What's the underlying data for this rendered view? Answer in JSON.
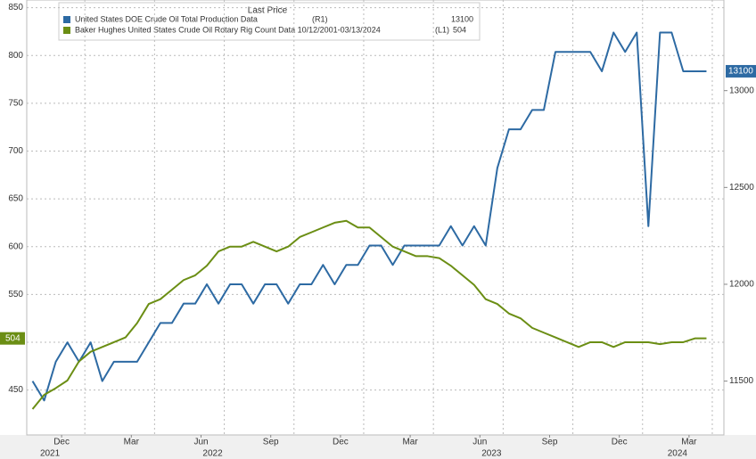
{
  "chart_data": {
    "type": "line",
    "legend_title": "Last Price",
    "x": [
      "2021-11",
      "2021-11",
      "2021-12",
      "2021-12",
      "2022-01",
      "2022-01",
      "2022-02",
      "2022-02",
      "2022-03",
      "2022-03",
      "2022-04",
      "2022-04",
      "2022-05",
      "2022-05",
      "2022-06",
      "2022-06",
      "2022-07",
      "2022-07",
      "2022-08",
      "2022-08",
      "2022-09",
      "2022-09",
      "2022-10",
      "2022-10",
      "2022-11",
      "2022-11",
      "2022-12",
      "2022-12",
      "2023-01",
      "2023-01",
      "2023-02",
      "2023-02",
      "2023-03",
      "2023-03",
      "2023-04",
      "2023-04",
      "2023-05",
      "2023-05",
      "2023-06",
      "2023-06",
      "2023-07",
      "2023-07",
      "2023-08",
      "2023-08",
      "2023-09",
      "2023-09",
      "2023-10",
      "2023-10",
      "2023-11",
      "2023-11",
      "2023-12",
      "2023-12",
      "2024-01",
      "2024-01",
      "2024-02",
      "2024-02",
      "2024-03",
      "2024-03",
      "2024-04"
    ],
    "series": [
      {
        "name": "United States DOE Crude Oil Total Production Data",
        "legend_tag": "(R1)",
        "last_price": 13100,
        "color": "#2d6aa3",
        "axis": "y2",
        "values": [
          11500,
          11400,
          11600,
          11700,
          11600,
          11700,
          11500,
          11600,
          11600,
          11600,
          11700,
          11800,
          11800,
          11900,
          11900,
          12000,
          11900,
          12000,
          12000,
          11900,
          12000,
          12000,
          11900,
          12000,
          12000,
          12100,
          12000,
          12100,
          12100,
          12200,
          12200,
          12100,
          12200,
          12200,
          12200,
          12200,
          12300,
          12200,
          12300,
          12200,
          12600,
          12800,
          12800,
          12900,
          12900,
          13200,
          13200,
          13200,
          13200,
          13100,
          13300,
          13200,
          13300,
          12300,
          13300,
          13300,
          13100,
          13100,
          13100
        ]
      },
      {
        "name": "Baker Hughes United States Crude Oil Rotary Rig Count Data 10/12/2001-03/13/2024",
        "legend_tag": "(L1)",
        "last_price": 504,
        "color": "#6b8e14",
        "values": [
          430,
          445,
          452,
          460,
          480,
          490,
          495,
          500,
          505,
          520,
          540,
          545,
          555,
          565,
          570,
          580,
          595,
          600,
          600,
          605,
          600,
          595,
          600,
          610,
          615,
          620,
          625,
          627,
          620,
          620,
          610,
          600,
          595,
          590,
          590,
          588,
          580,
          570,
          560,
          545,
          540,
          530,
          525,
          515,
          510,
          505,
          500,
          495,
          500,
          500,
          495,
          500,
          500,
          500,
          498,
          500,
          500,
          504,
          504
        ]
      }
    ],
    "ylim": [
      403,
      858
    ],
    "yticks": [
      450,
      500,
      550,
      600,
      650,
      700,
      750,
      800,
      850
    ],
    "y2lim": [
      11222,
      13468
    ],
    "y2ticks": [
      11500,
      12000,
      12500,
      13000
    ],
    "xlim": [
      "2021-11",
      "2024-04"
    ],
    "xticks": [
      {
        "value": "2021-12",
        "label": "Dec"
      },
      {
        "value": "2022-03",
        "label": "Mar"
      },
      {
        "value": "2022-06",
        "label": "Jun"
      },
      {
        "value": "2022-09",
        "label": "Sep"
      },
      {
        "value": "2022-12",
        "label": "Dec"
      },
      {
        "value": "2023-03",
        "label": "Mar"
      },
      {
        "value": "2023-06",
        "label": "Jun"
      },
      {
        "value": "2023-09",
        "label": "Sep"
      },
      {
        "value": "2023-12",
        "label": "Dec"
      },
      {
        "value": "2024-03",
        "label": "Mar"
      }
    ],
    "year_ticks": [
      {
        "value": "2021-12",
        "label": "2021"
      },
      {
        "value": "2022-07",
        "label": "2022"
      },
      {
        "value": "2023-07",
        "label": "2023"
      },
      {
        "value": "2024-03",
        "label": "2024"
      }
    ],
    "grid": true
  }
}
